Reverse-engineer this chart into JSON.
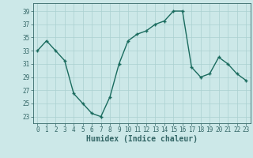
{
  "x": [
    0,
    1,
    2,
    3,
    4,
    5,
    6,
    7,
    8,
    9,
    10,
    11,
    12,
    13,
    14,
    15,
    16,
    17,
    18,
    19,
    20,
    21,
    22,
    23
  ],
  "y": [
    33.0,
    34.5,
    33.0,
    31.5,
    26.5,
    25.0,
    23.5,
    23.0,
    26.0,
    31.0,
    34.5,
    35.5,
    36.0,
    37.0,
    37.5,
    39.0,
    39.0,
    30.5,
    29.0,
    29.5,
    32.0,
    31.0,
    29.5,
    28.5
  ],
  "line_color": "#1a6b5e",
  "marker": "+",
  "marker_size": 3,
  "marker_edge_width": 1.0,
  "bg_color": "#cce8e8",
  "grid_color": "#aad0d0",
  "xlabel": "Humidex (Indice chaleur)",
  "xlabel_fontsize": 7,
  "ytick_vals": [
    23,
    25,
    27,
    29,
    31,
    33,
    35,
    37,
    39
  ],
  "xlim": [
    -0.5,
    23.5
  ],
  "ylim": [
    22.0,
    40.2
  ],
  "xtick_labels": [
    "0",
    "1",
    "2",
    "3",
    "4",
    "5",
    "6",
    "7",
    "8",
    "9",
    "10",
    "11",
    "12",
    "13",
    "14",
    "15",
    "16",
    "17",
    "18",
    "19",
    "20",
    "21",
    "22",
    "23"
  ],
  "tick_fontsize": 5.5,
  "line_width": 1.0,
  "fig_width": 3.2,
  "fig_height": 2.0,
  "dpi": 100
}
